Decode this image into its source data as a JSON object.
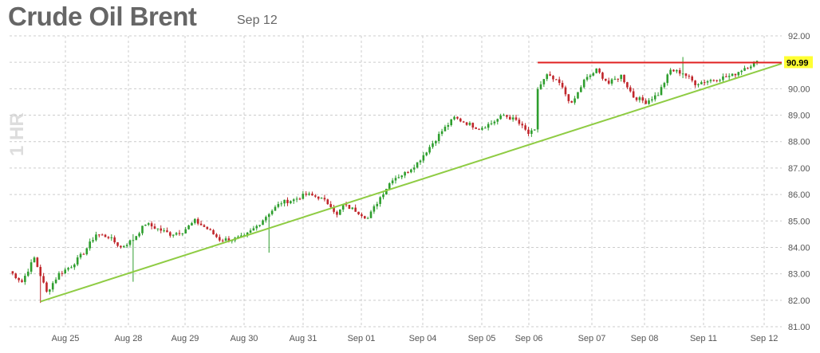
{
  "header": {
    "title": "Crude Oil Brent",
    "date": "Sep 12",
    "period": "1 HR"
  },
  "colors": {
    "up": "#2e9e2e",
    "down": "#c0262b",
    "trendline": "#8fcc44",
    "resistance": "#e02020",
    "grid": "#cccccc",
    "last_label_bg": "#ffff33"
  },
  "chart_data": {
    "type": "candlestick",
    "ylim": [
      81.0,
      92.0
    ],
    "y_ticks": [
      "92.00",
      "91.00",
      "90.00",
      "89.00",
      "88.00",
      "87.00",
      "86.00",
      "85.00",
      "84.00",
      "83.00",
      "82.00",
      "81.00"
    ],
    "x_ticks": [
      "Aug 25",
      "Aug 28",
      "Aug 29",
      "Aug 30",
      "Aug 31",
      "Sep 01",
      "Sep 04",
      "Sep 05",
      "Sep 06",
      "Sep 07",
      "Sep 08",
      "Sep 11",
      "Sep 12"
    ],
    "last_value": "90.99",
    "close_path": [
      [
        0,
        83.1
      ],
      [
        4,
        82.7
      ],
      [
        8,
        83.6
      ],
      [
        12,
        82.3
      ],
      [
        16,
        83.0
      ],
      [
        20,
        83.3
      ],
      [
        24,
        83.8
      ],
      [
        28,
        84.5
      ],
      [
        32,
        84.4
      ],
      [
        36,
        84.0
      ],
      [
        40,
        84.3
      ],
      [
        44,
        84.9
      ],
      [
        48,
        84.7
      ],
      [
        52,
        84.5
      ],
      [
        56,
        84.6
      ],
      [
        60,
        85.0
      ],
      [
        64,
        84.7
      ],
      [
        68,
        84.3
      ],
      [
        72,
        84.3
      ],
      [
        76,
        84.4
      ],
      [
        80,
        84.8
      ],
      [
        84,
        85.3
      ],
      [
        88,
        85.7
      ],
      [
        92,
        85.8
      ],
      [
        96,
        86.0
      ],
      [
        100,
        85.9
      ],
      [
        104,
        85.6
      ],
      [
        106,
        85.2
      ],
      [
        108,
        85.6
      ],
      [
        112,
        85.4
      ],
      [
        116,
        85.1
      ],
      [
        120,
        85.9
      ],
      [
        124,
        86.6
      ],
      [
        128,
        86.8
      ],
      [
        132,
        87.2
      ],
      [
        136,
        87.8
      ],
      [
        140,
        88.4
      ],
      [
        144,
        88.9
      ],
      [
        148,
        88.7
      ],
      [
        152,
        88.5
      ],
      [
        156,
        88.7
      ],
      [
        160,
        89.0
      ],
      [
        164,
        88.8
      ],
      [
        168,
        88.3
      ],
      [
        170,
        88.4
      ],
      [
        171,
        90.0
      ],
      [
        174,
        90.5
      ],
      [
        178,
        90.2
      ],
      [
        182,
        89.4
      ],
      [
        186,
        90.3
      ],
      [
        190,
        90.7
      ],
      [
        194,
        90.2
      ],
      [
        198,
        90.5
      ],
      [
        202,
        89.7
      ],
      [
        206,
        89.5
      ],
      [
        210,
        89.8
      ],
      [
        214,
        90.7
      ],
      [
        218,
        90.6
      ],
      [
        222,
        90.2
      ],
      [
        226,
        90.3
      ],
      [
        230,
        90.4
      ],
      [
        234,
        90.5
      ],
      [
        238,
        90.8
      ],
      [
        242,
        91.0
      ]
    ],
    "wicks": [
      {
        "i": 10,
        "low": 81.9,
        "high": 82.9
      },
      {
        "i": 40,
        "low": 82.7,
        "high": 84.5
      },
      {
        "i": 84,
        "low": 83.8,
        "high": 85.3
      },
      {
        "i": 218,
        "high": 91.2,
        "low": 90.4
      }
    ],
    "support_line": {
      "from": [
        10,
        81.95
      ],
      "to": [
        250,
        90.95
      ]
    },
    "resistance_line": {
      "from": [
        171,
        90.99
      ],
      "to": [
        250,
        90.99
      ]
    }
  }
}
